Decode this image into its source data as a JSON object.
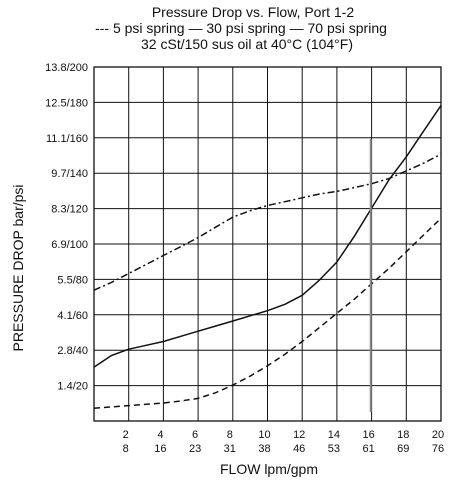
{
  "chart_data": {
    "type": "line",
    "title": "Pressure Drop vs. Flow, Port 1-2",
    "subtitle": "32 cSt/150 sus oil at 40°C (104°F)",
    "xlabel": "FLOW lpm/gpm",
    "ylabel": "PRESSURE DROP bar/psi",
    "x_ticks_lpm": [
      "2",
      "4",
      "6",
      "8",
      "10",
      "12",
      "14",
      "16",
      "18",
      "20"
    ],
    "x_ticks_gpm": [
      "8",
      "16",
      "23",
      "31",
      "38",
      "46",
      "53",
      "61",
      "69",
      "76"
    ],
    "y_ticks": [
      "1.4/20",
      "2.8/40",
      "4.1/60",
      "5.5/80",
      "6.9/100",
      "8.3/120",
      "9.7/140",
      "11.1/160",
      "12.5/180",
      "13.8/200"
    ],
    "xlim": [
      0,
      20
    ],
    "ylim": [
      0,
      13.8
    ],
    "grid": true,
    "legend_position": "top",
    "series": [
      {
        "name": "5 psi spring",
        "style": "dashed",
        "x": [
          0,
          1,
          2,
          3,
          4,
          5,
          6,
          7,
          8,
          9,
          10,
          11,
          12,
          13,
          14,
          15,
          16,
          17,
          18,
          19,
          20
        ],
        "y": [
          0.5,
          0.55,
          0.6,
          0.65,
          0.7,
          0.78,
          0.88,
          1.1,
          1.4,
          1.75,
          2.15,
          2.6,
          3.1,
          3.65,
          4.2,
          4.75,
          5.35,
          5.95,
          6.6,
          7.25,
          7.9
        ]
      },
      {
        "name": "30 psi spring",
        "style": "solid",
        "x": [
          0,
          1,
          2,
          3,
          4,
          5,
          6,
          7,
          8,
          9,
          10,
          11,
          12,
          13,
          14,
          15,
          16,
          17,
          18,
          19,
          20
        ],
        "y": [
          2.1,
          2.55,
          2.8,
          2.95,
          3.1,
          3.3,
          3.5,
          3.7,
          3.9,
          4.1,
          4.3,
          4.55,
          4.9,
          5.5,
          6.2,
          7.2,
          8.3,
          9.4,
          10.3,
          11.3,
          12.3
        ]
      },
      {
        "name": "70 psi spring",
        "style": "dashdot",
        "x": [
          0,
          1,
          2,
          3,
          4,
          5,
          6,
          7,
          8,
          9,
          10,
          11,
          12,
          13,
          14,
          15,
          16,
          17,
          18,
          19,
          20
        ],
        "y": [
          5.1,
          5.4,
          5.75,
          6.1,
          6.45,
          6.8,
          7.15,
          7.55,
          7.95,
          8.2,
          8.4,
          8.55,
          8.7,
          8.85,
          8.95,
          9.1,
          9.25,
          9.45,
          9.75,
          10.05,
          10.4
        ]
      }
    ],
    "legend": [
      {
        "prefix": "---",
        "label": "5 psi spring",
        "style": "dashed"
      },
      {
        "prefix": "—",
        "label": "30 psi spring",
        "style": "solid"
      },
      {
        "prefix": "—",
        "label": "70 psi spring",
        "style": "dashdot"
      }
    ]
  }
}
